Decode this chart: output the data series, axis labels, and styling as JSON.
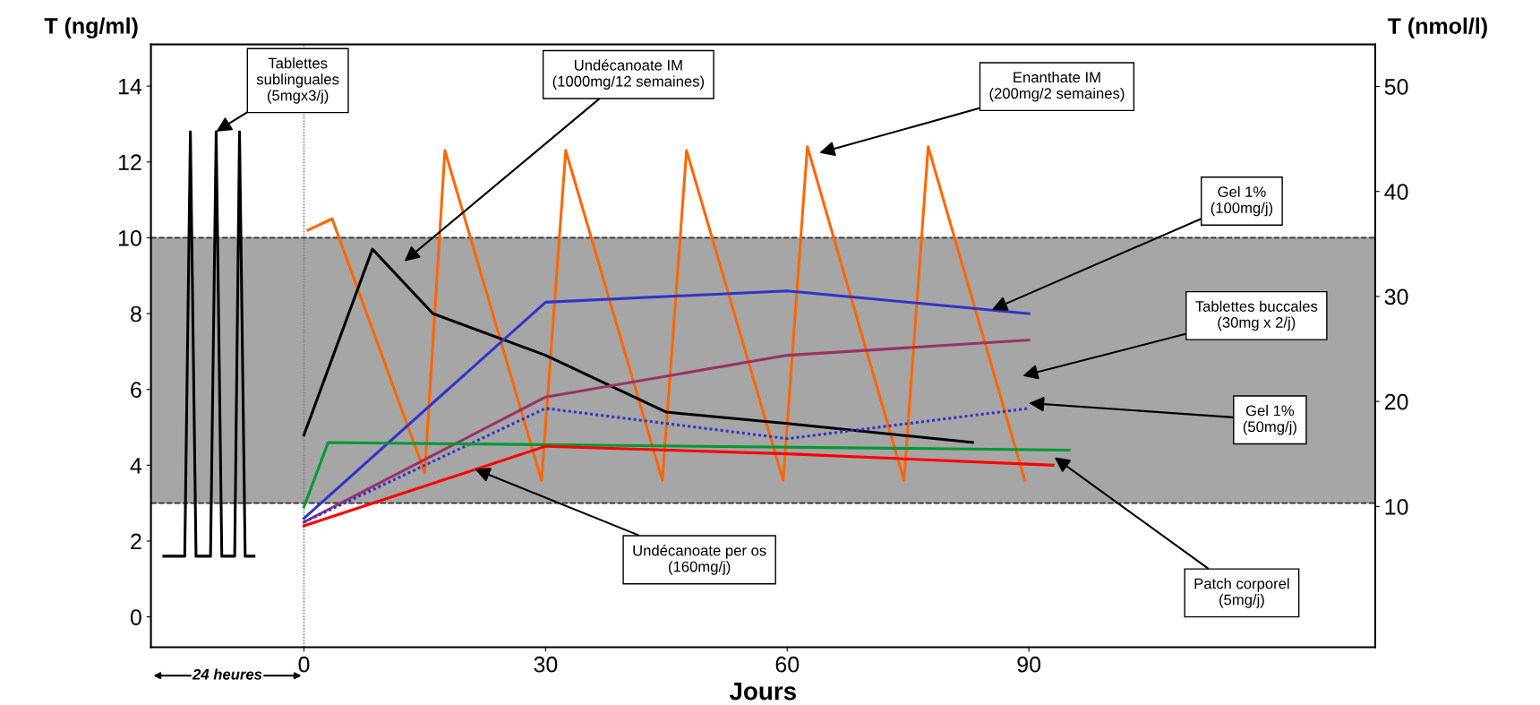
{
  "chart_data": {
    "type": "line",
    "xlabel": "Jours",
    "ylabel": "T (ng/ml)",
    "y2label": "T (nmol/l)",
    "xlim": [
      -19,
      133
    ],
    "xticks": [
      0,
      30,
      60,
      90
    ],
    "ylim": [
      -0.8,
      15.1
    ],
    "yticks": [
      0,
      2,
      4,
      6,
      8,
      10,
      12,
      14
    ],
    "y2lim": [
      -3.4,
      54
    ],
    "y2ticks": [
      10,
      20,
      30,
      40,
      50
    ],
    "grid": false,
    "bands": [
      {
        "axis": "y",
        "from": 3,
        "to": 10,
        "color": "#a6a6a6"
      }
    ],
    "ref_lines": [
      {
        "axis": "x",
        "value": 0,
        "line_style": "dotted",
        "color": "#808080"
      },
      {
        "axis": "y",
        "value": 3,
        "line_style": "dashed",
        "color": "#333333"
      },
      {
        "axis": "y",
        "value": 10,
        "line_style": "dashed",
        "color": "#333333"
      }
    ],
    "series": [
      {
        "color": "#000000",
        "x": [
          -17.4,
          -14.8,
          -14.1,
          -13.4,
          -11.6,
          -10.9,
          -10.2,
          -8.6,
          -8.0,
          -7.3,
          -6.2
        ],
        "values": [
          1.6,
          1.6,
          12.8,
          1.6,
          1.6,
          12.8,
          1.6,
          1.6,
          12.8,
          1.6,
          1.6
        ]
      },
      {
        "color": "#ff6600",
        "x": [
          0.5,
          3.5,
          15,
          17.5,
          29.5,
          32.5,
          44.5,
          47.5,
          59.5,
          62.5,
          74.5,
          77.5,
          89.5
        ],
        "values": [
          10.2,
          10.5,
          3.8,
          12.3,
          3.6,
          12.3,
          3.6,
          12.3,
          3.6,
          12.4,
          3.6,
          12.4,
          3.6
        ]
      },
      {
        "color": "#000000",
        "x": [
          0,
          8.5,
          16,
          30,
          45,
          60,
          83
        ],
        "values": [
          4.8,
          9.7,
          8.0,
          6.9,
          5.4,
          5.1,
          4.6
        ]
      },
      {
        "color": "#3333cc",
        "x": [
          0,
          30,
          60,
          90
        ],
        "values": [
          2.6,
          8.3,
          8.6,
          8.0
        ]
      },
      {
        "color": "#993366",
        "x": [
          0,
          30,
          60,
          90
        ],
        "values": [
          2.5,
          5.8,
          6.9,
          7.3
        ]
      },
      {
        "color": "#3333cc",
        "line_style": "dotted",
        "x": [
          0,
          30,
          60,
          90
        ],
        "values": [
          2.5,
          5.5,
          4.7,
          5.5
        ]
      },
      {
        "color": "#009933",
        "x": [
          0,
          3,
          95
        ],
        "values": [
          2.9,
          4.6,
          4.4
        ]
      },
      {
        "color": "#ff0000",
        "x": [
          0,
          30,
          60,
          93
        ],
        "values": [
          2.4,
          4.5,
          4.3,
          4.0
        ]
      }
    ],
    "annotations": [
      {
        "text": "Tablettes\nsublinguales\n(5mgx3/j)",
        "x": -10.9,
        "y": 12.8
      },
      "Undécanoate IM\n(1000mg/12 semaines)",
      "Enanthate IM\n(200mg/2 semaines)",
      {
        "text": "Gel 1%\n(100mg/j)",
        "x": 85.4,
        "y": 8.1
      },
      "Tablettes buccales\n(30mg x 2/j)",
      "Gel 1%\n(50mg/j)",
      "Patch corporel\n(5mg/j)",
      {
        "text": "Undécanoate per os\n(160mg/j)",
        "x": 21.2,
        "y": 3.9
      },
      "24 heures"
    ]
  }
}
